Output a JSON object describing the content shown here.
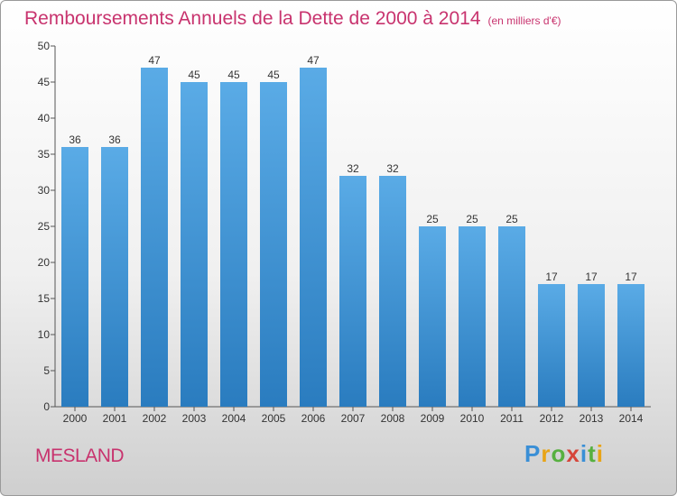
{
  "chart_data": {
    "type": "bar",
    "title": "Remboursements Annuels de la Dette de 2000 à 2014",
    "subtitle": "(en milliers d'€)",
    "categories": [
      "2000",
      "2001",
      "2002",
      "2003",
      "2004",
      "2005",
      "2006",
      "2007",
      "2008",
      "2009",
      "2010",
      "2011",
      "2012",
      "2013",
      "2014"
    ],
    "values": [
      36,
      36,
      47,
      45,
      45,
      45,
      47,
      32,
      32,
      25,
      25,
      25,
      17,
      17,
      17
    ],
    "ylim": [
      0,
      50
    ],
    "yticks": [
      0,
      5,
      10,
      15,
      20,
      25,
      30,
      35,
      40,
      45,
      50
    ],
    "grid": false,
    "bar_color": "#5aabe6"
  },
  "place_name": "MESLAND",
  "logo": {
    "letters": [
      "P",
      "r",
      "o",
      "x",
      "i",
      "t",
      "i"
    ],
    "colors": [
      "#3a8fd6",
      "#e8a416",
      "#57b040",
      "#d6453a",
      "#3a8fd6",
      "#57b040",
      "#e8a416"
    ]
  }
}
